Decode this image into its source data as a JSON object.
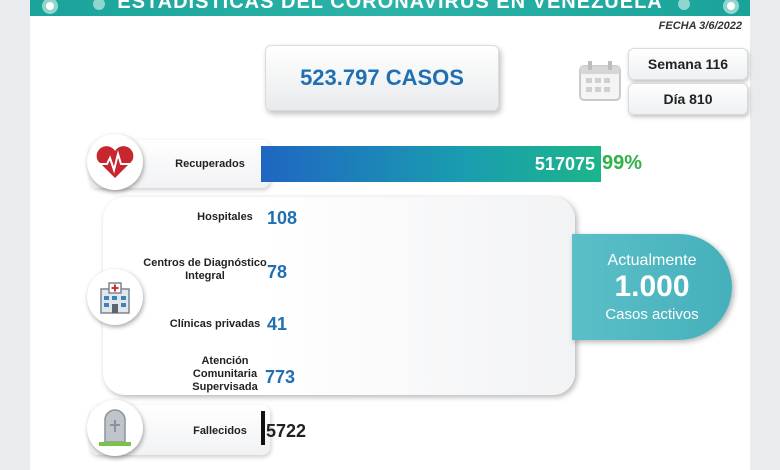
{
  "header": {
    "title": "ESTADÍSTICAS DEL CORONAVIRUS EN VENEZUELA",
    "date": "FECHA 3/6/2022"
  },
  "summary": {
    "total_cases": "523.797 CASOS",
    "week": "Semana 116",
    "day": "Día 810"
  },
  "recovered": {
    "label": "Recuperados",
    "value": "517075",
    "percent": "99%"
  },
  "hospitalization": {
    "items": [
      {
        "label": "Hospitales",
        "value": "108"
      },
      {
        "label": "Centros de Diagnóstico Integral",
        "value": "78"
      },
      {
        "label": "Clínicas privadas",
        "value": "41"
      },
      {
        "label": "Atención Comunitaria Supervisada",
        "value": "773"
      }
    ]
  },
  "active": {
    "line1": "Actualmente",
    "count": "1.000",
    "line3": "Casos activos"
  },
  "deaths": {
    "label": "Fallecidos",
    "value": "5722"
  },
  "icons": [
    "heart-ecg-icon",
    "hospital-icon",
    "tombstone-icon",
    "calendar-icon",
    "virus-icon"
  ],
  "colors": {
    "accent": "#1f6fb2",
    "teal": "#45b0bb",
    "green": "#2eb24a"
  }
}
